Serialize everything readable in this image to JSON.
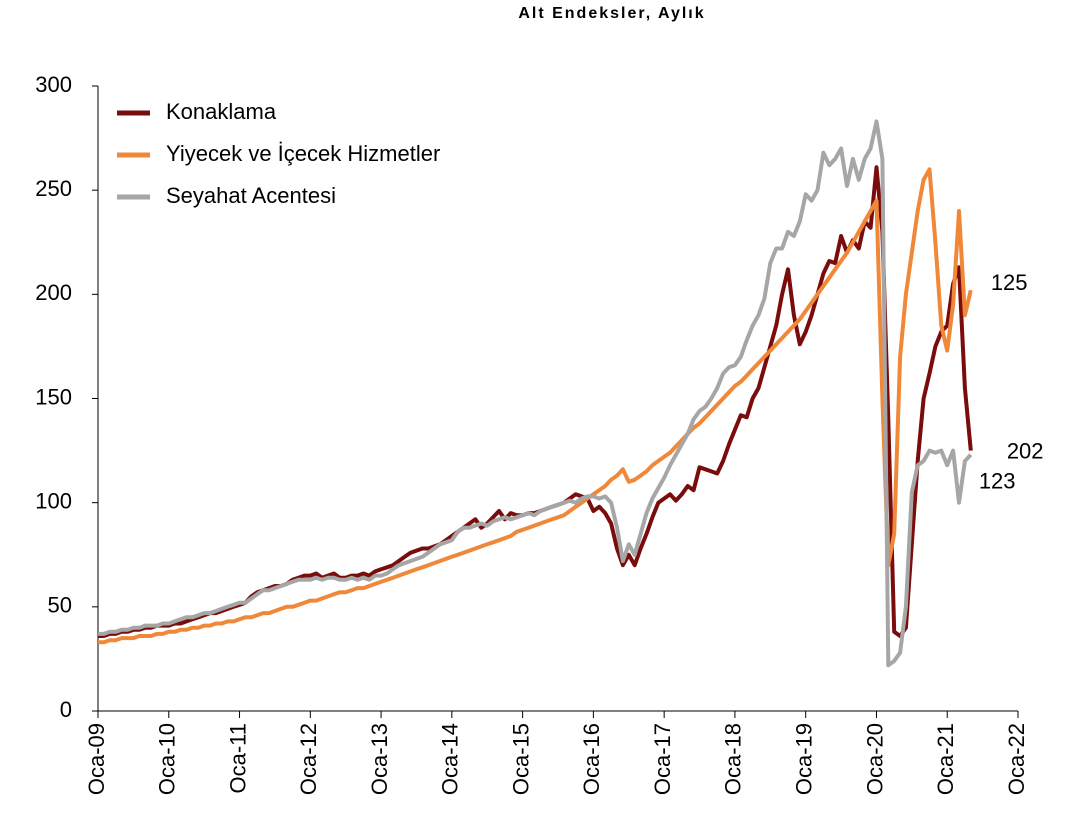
{
  "chart_data": {
    "type": "line",
    "title": "Alt Endeksler, Aylık",
    "x": [
      "2009-01",
      "2009-02",
      "2009-03",
      "2009-04",
      "2009-05",
      "2009-06",
      "2009-07",
      "2009-08",
      "2009-09",
      "2009-10",
      "2009-11",
      "2009-12",
      "2010-01",
      "2010-02",
      "2010-03",
      "2010-04",
      "2010-05",
      "2010-06",
      "2010-07",
      "2010-08",
      "2010-09",
      "2010-10",
      "2010-11",
      "2010-12",
      "2011-01",
      "2011-02",
      "2011-03",
      "2011-04",
      "2011-05",
      "2011-06",
      "2011-07",
      "2011-08",
      "2011-09",
      "2011-10",
      "2011-11",
      "2011-12",
      "2012-01",
      "2012-02",
      "2012-03",
      "2012-04",
      "2012-05",
      "2012-06",
      "2012-07",
      "2012-08",
      "2012-09",
      "2012-10",
      "2012-11",
      "2012-12",
      "2013-01",
      "2013-02",
      "2013-03",
      "2013-04",
      "2013-05",
      "2013-06",
      "2013-07",
      "2013-08",
      "2013-09",
      "2013-10",
      "2013-11",
      "2013-12",
      "2014-01",
      "2014-02",
      "2014-03",
      "2014-04",
      "2014-05",
      "2014-06",
      "2014-07",
      "2014-08",
      "2014-09",
      "2014-10",
      "2014-11",
      "2014-12",
      "2015-01",
      "2015-02",
      "2015-03",
      "2015-04",
      "2015-05",
      "2015-06",
      "2015-07",
      "2015-08",
      "2015-09",
      "2015-10",
      "2015-11",
      "2015-12",
      "2016-01",
      "2016-02",
      "2016-03",
      "2016-04",
      "2016-05",
      "2016-06",
      "2016-07",
      "2016-08",
      "2016-09",
      "2016-10",
      "2016-11",
      "2016-12",
      "2017-01",
      "2017-02",
      "2017-03",
      "2017-04",
      "2017-05",
      "2017-06",
      "2017-07",
      "2017-08",
      "2017-09",
      "2017-10",
      "2017-11",
      "2017-12",
      "2018-01",
      "2018-02",
      "2018-03",
      "2018-04",
      "2018-05",
      "2018-06",
      "2018-07",
      "2018-08",
      "2018-09",
      "2018-10",
      "2018-11",
      "2018-12",
      "2019-01",
      "2019-02",
      "2019-03",
      "2019-04",
      "2019-05",
      "2019-06",
      "2019-07",
      "2019-08",
      "2019-09",
      "2019-10",
      "2019-11",
      "2019-12",
      "2020-01",
      "2020-02",
      "2020-03",
      "2020-04",
      "2020-05",
      "2020-06",
      "2020-07",
      "2020-08",
      "2020-09",
      "2020-10",
      "2020-11",
      "2020-12",
      "2021-01",
      "2021-02",
      "2021-03",
      "2021-04",
      "2021-05"
    ],
    "series": [
      {
        "name": "Konaklama",
        "color": "#7b0c0c",
        "values": [
          36,
          36,
          37,
          37,
          38,
          38,
          39,
          39,
          40,
          40,
          41,
          41,
          41,
          42,
          42,
          43,
          44,
          45,
          46,
          47,
          47,
          48,
          49,
          50,
          51,
          52,
          55,
          57,
          58,
          59,
          60,
          60,
          61,
          63,
          64,
          65,
          65,
          66,
          64,
          65,
          66,
          64,
          64,
          65,
          65,
          66,
          65,
          67,
          68,
          69,
          70,
          72,
          74,
          76,
          77,
          78,
          78,
          79,
          80,
          82,
          84,
          86,
          88,
          90,
          92,
          88,
          90,
          93,
          96,
          92,
          95,
          94,
          94,
          95,
          95,
          96,
          97,
          98,
          99,
          100,
          102,
          104,
          103,
          102,
          96,
          98,
          95,
          90,
          78,
          70,
          75,
          70,
          78,
          85,
          93,
          100,
          102,
          104,
          101,
          104,
          108,
          106,
          117,
          116,
          115,
          114,
          120,
          128,
          135,
          142,
          141,
          150,
          155,
          165,
          175,
          185,
          200,
          212,
          190,
          176,
          182,
          190,
          200,
          210,
          216,
          215,
          228,
          220,
          226,
          222,
          235,
          232,
          261,
          230,
          140,
          38,
          36,
          40,
          80,
          120,
          150,
          162,
          175,
          182,
          185,
          205,
          213,
          155,
          125
        ]
      },
      {
        "name": "Yiyecek ve İçecek Hizmetler",
        "color": "#f0883a",
        "values": [
          33,
          33,
          34,
          34,
          35,
          35,
          35,
          36,
          36,
          36,
          37,
          37,
          38,
          38,
          39,
          39,
          40,
          40,
          41,
          41,
          42,
          42,
          43,
          43,
          44,
          45,
          45,
          46,
          47,
          47,
          48,
          49,
          50,
          50,
          51,
          52,
          53,
          53,
          54,
          55,
          56,
          57,
          57,
          58,
          59,
          59,
          60,
          61,
          62,
          63,
          64,
          65,
          66,
          67,
          68,
          69,
          70,
          71,
          72,
          73,
          74,
          75,
          76,
          77,
          78,
          79,
          80,
          81,
          82,
          83,
          84,
          86,
          87,
          88,
          89,
          90,
          91,
          92,
          93,
          94,
          96,
          98,
          100,
          102,
          104,
          106,
          108,
          111,
          113,
          116,
          110,
          111,
          113,
          115,
          118,
          120,
          122,
          124,
          127,
          130,
          133,
          136,
          138,
          141,
          144,
          147,
          150,
          153,
          156,
          158,
          161,
          164,
          167,
          170,
          173,
          176,
          179,
          182,
          185,
          188,
          192,
          196,
          200,
          204,
          208,
          212,
          216,
          220,
          225,
          230,
          235,
          240,
          245,
          150,
          70,
          85,
          170,
          200,
          220,
          240,
          255,
          260,
          225,
          185,
          173,
          195,
          240,
          190,
          202
        ]
      },
      {
        "name": "Seyahat Acentesi",
        "color": "#a6a6a6",
        "values": [
          37,
          37,
          38,
          38,
          39,
          39,
          40,
          40,
          41,
          41,
          41,
          42,
          42,
          43,
          44,
          45,
          45,
          46,
          47,
          47,
          48,
          49,
          50,
          51,
          52,
          52,
          54,
          56,
          58,
          58,
          59,
          60,
          61,
          62,
          63,
          63,
          63,
          64,
          63,
          64,
          64,
          63,
          63,
          64,
          63,
          64,
          63,
          65,
          65,
          66,
          68,
          70,
          71,
          72,
          73,
          74,
          76,
          78,
          80,
          81,
          82,
          86,
          88,
          88,
          89,
          90,
          89,
          91,
          92,
          93,
          92,
          93,
          94,
          95,
          94,
          96,
          97,
          98,
          99,
          100,
          101,
          100,
          102,
          103,
          103,
          102,
          103,
          100,
          88,
          72,
          80,
          75,
          85,
          95,
          102,
          107,
          112,
          118,
          123,
          128,
          133,
          140,
          144,
          146,
          150,
          155,
          162,
          165,
          166,
          170,
          178,
          185,
          190,
          198,
          215,
          222,
          222,
          230,
          228,
          235,
          248,
          245,
          250,
          268,
          262,
          265,
          270,
          252,
          265,
          255,
          265,
          270,
          283,
          265,
          22,
          24,
          28,
          50,
          105,
          118,
          120,
          125,
          124,
          125,
          118,
          125,
          100,
          120,
          123
        ]
      }
    ],
    "annotations": [
      "202",
      "125",
      "123"
    ],
    "xlim": [
      "2009-01",
      "2022-01"
    ],
    "xticks": [
      {
        "value": "2009-01",
        "label": "Oca-09"
      },
      {
        "value": "2010-01",
        "label": "Oca-10"
      },
      {
        "value": "2011-01",
        "label": "Oca-11"
      },
      {
        "value": "2012-01",
        "label": "Oca-12"
      },
      {
        "value": "2013-01",
        "label": "Oca-13"
      },
      {
        "value": "2014-01",
        "label": "Oca-14"
      },
      {
        "value": "2015-01",
        "label": "Oca-15"
      },
      {
        "value": "2016-01",
        "label": "Oca-16"
      },
      {
        "value": "2017-01",
        "label": "Oca-17"
      },
      {
        "value": "2018-01",
        "label": "Oca-18"
      },
      {
        "value": "2019-01",
        "label": "Oca-19"
      },
      {
        "value": "2020-01",
        "label": "Oca-20"
      },
      {
        "value": "2021-01",
        "label": "Oca-21"
      },
      {
        "value": "2022-01",
        "label": "Oca-22"
      }
    ],
    "ylim": [
      0,
      300
    ],
    "yticks": [
      0,
      50,
      100,
      150,
      200,
      250,
      300
    ],
    "grid": false,
    "legend": "upper left"
  }
}
